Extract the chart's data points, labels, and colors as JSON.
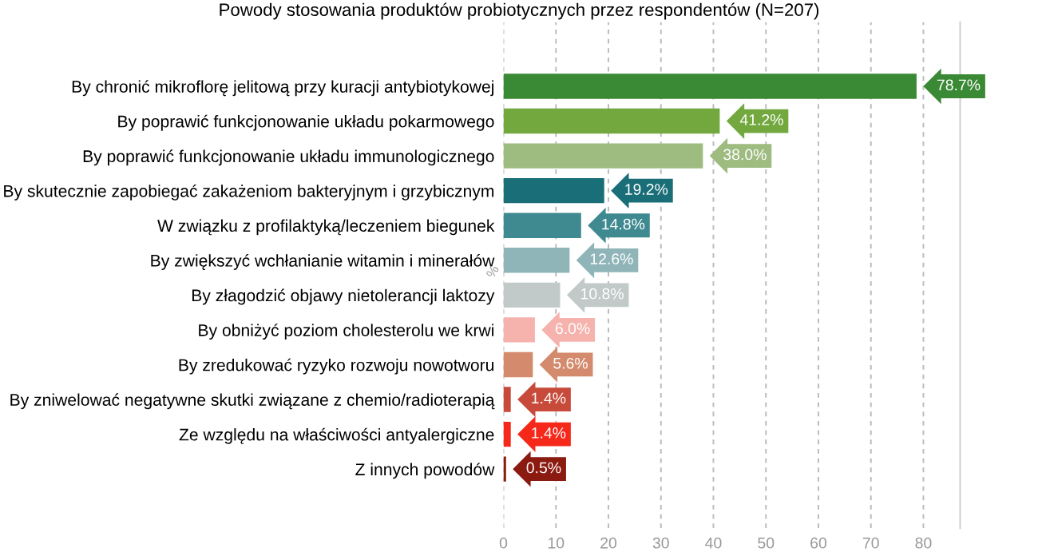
{
  "chart_data": {
    "type": "bar",
    "orientation": "horizontal",
    "title": "Powody stosowania produktów probiotycznych przez respondentów (N=207)",
    "ylabel": "%",
    "categories": [
      "By chronić mikroflorę jelitową przy kuracji antybiotykowej",
      "By poprawić funkcjonowanie układu pokarmowego",
      "By poprawić funkcjonowanie układu immunologicznego",
      "By skutecznie zapobiegać zakażeniom bakteryjnym i grzybicznym",
      "W związku z profilaktyką/leczeniem biegunek",
      "By zwiększyć wchłanianie witamin i minerałów",
      "By złagodzić objawy nietolerancji laktozy",
      "By obniżyć poziom cholesterolu we krwi",
      "By zredukować ryzyko rozwoju nowotworu",
      "By zniwelować negatywne skutki związane z chemio/radioterapią",
      "Ze względu na właściwości antyalergiczne",
      "Z innych powodów"
    ],
    "values": [
      78.7,
      41.2,
      38.0,
      19.2,
      14.8,
      12.6,
      10.8,
      6.0,
      5.6,
      1.4,
      1.4,
      0.5
    ],
    "value_labels": [
      "78.7%",
      "41.2%",
      "38.0%",
      "19.2%",
      "14.8%",
      "12.6%",
      "10.8%",
      "6.0%",
      "5.6%",
      "1.4%",
      "1.4%",
      "0.5%"
    ],
    "colors": [
      "#3a8a35",
      "#72a83e",
      "#9ebb80",
      "#1a6e78",
      "#3f8a91",
      "#8fb5b8",
      "#c1c9c9",
      "#f6b2ad",
      "#d48a6c",
      "#c84a3a",
      "#f5281a",
      "#8b1a10"
    ],
    "xlim": [
      0,
      87
    ],
    "xticks": [
      0,
      10,
      20,
      30,
      40,
      50,
      60,
      70,
      80
    ],
    "grid": "x",
    "legend": false
  }
}
